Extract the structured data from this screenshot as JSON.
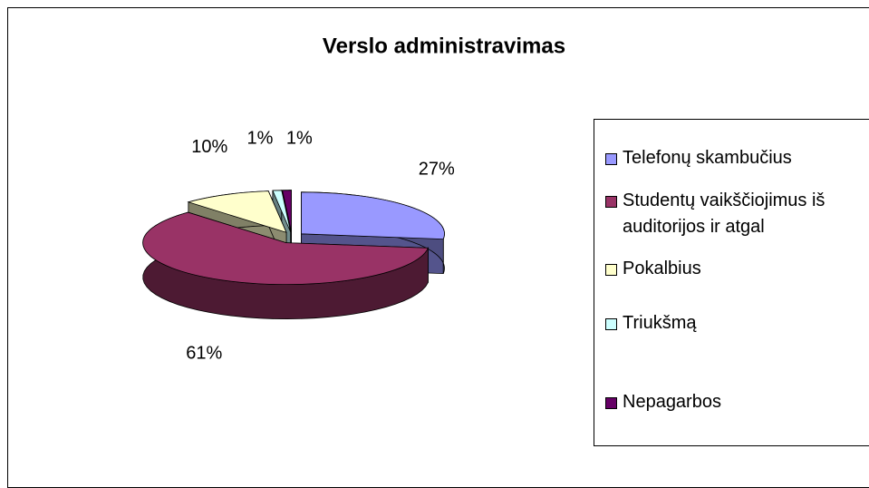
{
  "chart_data": {
    "type": "pie",
    "title": "Verslo administravimas",
    "categories": [
      "Telefonų skambučius",
      "Studentų vaikščiojimus iš auditorijos ir atgal",
      "Pokalbius",
      "Triukšmą",
      "Nepagarbos"
    ],
    "values": [
      27,
      61,
      10,
      1,
      1
    ],
    "value_labels": [
      "27%",
      "61%",
      "10%",
      "1%",
      "1%"
    ],
    "colors": [
      "#9999ff",
      "#993366",
      "#ffffcc",
      "#ccffff",
      "#660066"
    ],
    "legend": "right"
  }
}
